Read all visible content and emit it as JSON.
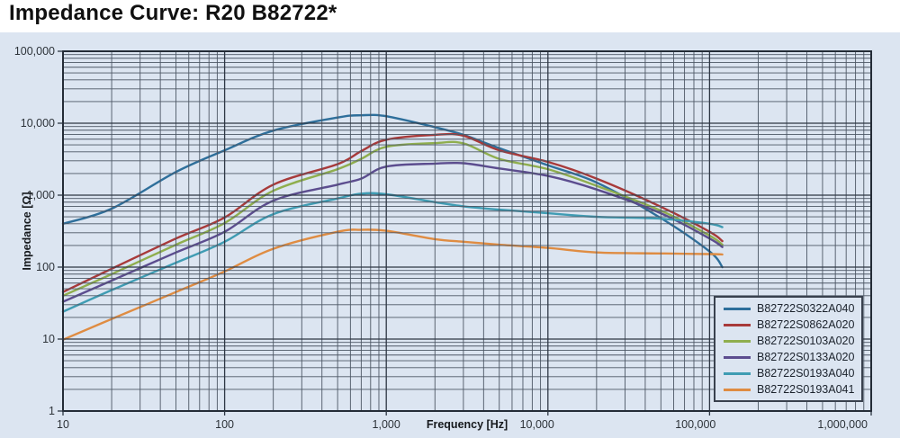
{
  "title": "Impedance Curve: R20 B82722*",
  "colors": {
    "page_bg": "#ffffff",
    "panel_bg": "#dce5f1",
    "grid_minor": "#4d5765",
    "grid_major": "#2e3744",
    "plot_border": "#242c37",
    "title_text": "#101010",
    "tick_text": "#2d3339",
    "axis_label_text": "#16191d",
    "legend_border": "#39414e"
  },
  "chart_data": {
    "type": "line",
    "title": "Impedance Curve: R20 B82722*",
    "xlabel": "Frequency [Hz]",
    "ylabel": "Impedance [Ω]",
    "x_scale": "log",
    "y_scale": "log",
    "xlim": [
      10,
      1000000
    ],
    "ylim": [
      1,
      100000
    ],
    "grid": "log major+minor, dark lines on light blue, drawn above curves",
    "legend_position": "lower right",
    "x_ticks": [
      {
        "value": 10,
        "label": "10"
      },
      {
        "value": 100,
        "label": "100"
      },
      {
        "value": 1000,
        "label": "1,000"
      },
      {
        "value": 10000,
        "label": "10,000"
      },
      {
        "value": 100000,
        "label": "100,000"
      },
      {
        "value": 1000000,
        "label": "1,000,000"
      }
    ],
    "y_ticks": [
      {
        "value": 1,
        "label": "1"
      },
      {
        "value": 10,
        "label": "10"
      },
      {
        "value": 100,
        "label": "100"
      },
      {
        "value": 1000,
        "label": "1,000"
      },
      {
        "value": 10000,
        "label": "10,000"
      },
      {
        "value": 100000,
        "label": "100,000"
      }
    ],
    "frequencies_hz": [
      10,
      20,
      50,
      100,
      200,
      500,
      700,
      1000,
      2000,
      3000,
      5000,
      10000,
      20000,
      50000,
      100000,
      120000
    ],
    "series": [
      {
        "name": "B82722S0322A040",
        "color": "#2e6f9b",
        "impedance_ohm": [
          400,
          650,
          2100,
          4200,
          7900,
          12000,
          12900,
          12500,
          8800,
          6900,
          4500,
          2600,
          1500,
          480,
          165,
          100
        ]
      },
      {
        "name": "B82722S0862A020",
        "color": "#a83a3a",
        "impedance_ohm": [
          45,
          95,
          250,
          490,
          1400,
          2700,
          4100,
          5900,
          6900,
          6700,
          4200,
          2900,
          1700,
          690,
          310,
          230
        ]
      },
      {
        "name": "B82722S0103A020",
        "color": "#8fae4e",
        "impedance_ohm": [
          40,
          80,
          205,
          410,
          1150,
          2300,
          3200,
          4700,
          5300,
          5250,
          3200,
          2300,
          1350,
          610,
          275,
          205
        ]
      },
      {
        "name": "B82722S0133A020",
        "color": "#5c4d8f",
        "impedance_ohm": [
          33,
          65,
          160,
          310,
          840,
          1400,
          1700,
          2500,
          2750,
          2780,
          2350,
          1850,
          1200,
          560,
          250,
          190
        ]
      },
      {
        "name": "B82722S0193A040",
        "color": "#3f9cb3",
        "impedance_ohm": [
          24,
          48,
          115,
          225,
          545,
          900,
          1050,
          1030,
          800,
          700,
          630,
          560,
          500,
          470,
          400,
          360
        ]
      },
      {
        "name": "B82722S0193A041",
        "color": "#df8c42",
        "impedance_ohm": [
          9.8,
          19,
          45,
          87,
          180,
          310,
          330,
          320,
          245,
          225,
          205,
          185,
          160,
          155,
          152,
          150
        ]
      }
    ]
  }
}
